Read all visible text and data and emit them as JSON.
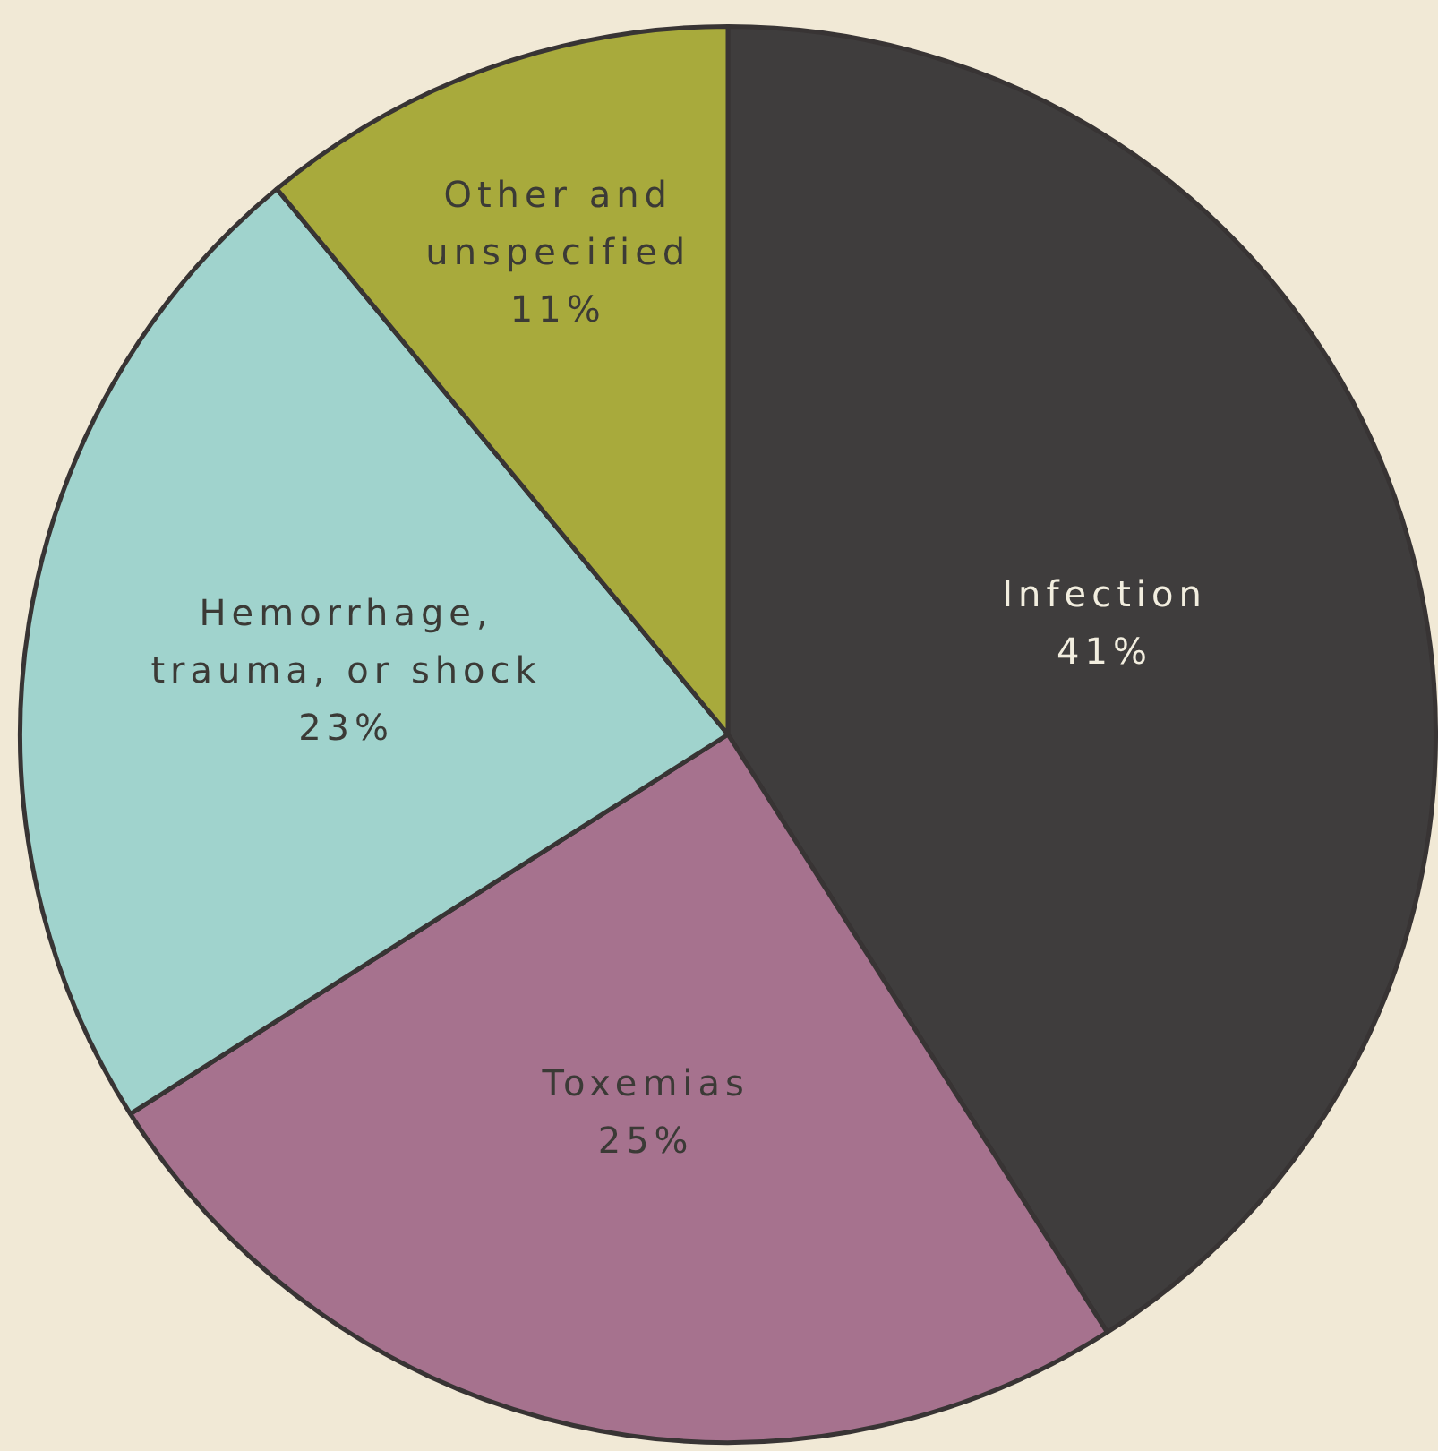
{
  "chart_data": {
    "type": "pie",
    "categories": [
      "Infection",
      "Toxemias",
      "Hemorrhage,\ntrauma, or shock",
      "Other and\nunspecified"
    ],
    "values": [
      41,
      25,
      23,
      11
    ],
    "value_labels": [
      "41%",
      "25%",
      "23%",
      "11%"
    ],
    "colors": [
      "#3f3d3d",
      "#a6728e",
      "#a0d3cd",
      "#a8aa3c"
    ],
    "legend": false
  }
}
